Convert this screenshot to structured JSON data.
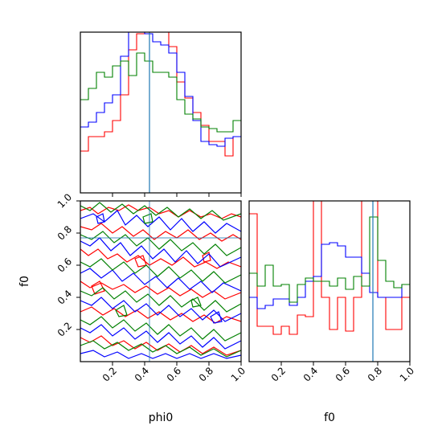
{
  "chart_data": [
    {
      "type": "line",
      "panel": "histogram",
      "parameter": "phi0",
      "x_edges": [
        0.0,
        0.05,
        0.1,
        0.15,
        0.2,
        0.25,
        0.3,
        0.35,
        0.4,
        0.45,
        0.5,
        0.55,
        0.6,
        0.65,
        0.7,
        0.75,
        0.8,
        0.85,
        0.9,
        0.95,
        1.0
      ],
      "xlim": [
        0.0,
        1.0
      ],
      "ticks": [],
      "truth_value": 0.43,
      "truth_color": "#1f77b4",
      "series": [
        {
          "color": "#ff0000",
          "values": [
            0.26,
            0.35,
            0.35,
            0.38,
            0.45,
            0.61,
            0.89,
            0.99,
            1.02,
            1.06,
            1.0,
            0.91,
            0.69,
            0.59,
            0.5,
            0.42,
            0.32,
            0.32,
            0.23,
            0.35
          ]
        },
        {
          "color": "#0000ff",
          "values": [
            0.41,
            0.44,
            0.5,
            0.56,
            0.61,
            0.85,
            1.0,
            1.04,
            0.99,
            0.94,
            0.92,
            0.87,
            0.75,
            0.6,
            0.45,
            0.32,
            0.3,
            0.29,
            0.34,
            0.35
          ]
        },
        {
          "color": "#008000",
          "values": [
            0.58,
            0.65,
            0.75,
            0.72,
            0.79,
            0.82,
            0.73,
            0.87,
            0.82,
            0.75,
            0.75,
            0.72,
            0.58,
            0.49,
            0.46,
            0.41,
            0.4,
            0.38,
            0.38,
            0.45
          ]
        }
      ]
    },
    {
      "type": "contour",
      "panel": "2d",
      "x_parameter": "phi0",
      "y_parameter": "f0",
      "xlim": [
        0.0,
        1.0
      ],
      "ylim": [
        0.0,
        1.0
      ],
      "x_ticks": [
        "0.2",
        "0.4",
        "0.6",
        "0.8",
        "1.0"
      ],
      "y_ticks": [
        "0.2",
        "0.4",
        "0.6",
        "0.8",
        "1.0"
      ],
      "xlabel": "phi0",
      "ylabel": "f0",
      "series_colors": [
        "#ff0000",
        "#0000ff",
        "#008000"
      ]
    },
    {
      "type": "line",
      "panel": "histogram",
      "parameter": "f0",
      "x_edges": [
        0.0,
        0.05,
        0.1,
        0.15,
        0.2,
        0.25,
        0.3,
        0.35,
        0.4,
        0.45,
        0.5,
        0.55,
        0.6,
        0.65,
        0.7,
        0.75,
        0.8,
        0.85,
        0.9,
        0.95,
        1.0
      ],
      "xlim": [
        0.0,
        1.0
      ],
      "x_ticks": [
        "0.2",
        "0.4",
        "0.6",
        "0.8",
        "1.0"
      ],
      "xlabel": "f0",
      "truth_value": 0.77,
      "truth_color": "#1f77b4",
      "series": [
        {
          "color": "#ff0000",
          "values": [
            0.92,
            0.22,
            0.22,
            0.17,
            0.22,
            0.17,
            0.29,
            0.28,
            1.05,
            0.4,
            0.2,
            0.4,
            0.19,
            0.4,
            1.05,
            1.05,
            0.4,
            0.2,
            0.2,
            0.4
          ]
        },
        {
          "color": "#0000ff",
          "values": [
            0.4,
            0.33,
            0.35,
            0.39,
            0.39,
            0.35,
            0.4,
            0.5,
            0.53,
            0.73,
            0.74,
            0.72,
            0.65,
            0.65,
            0.55,
            0.43,
            0.4,
            0.4,
            0.4,
            0.48
          ]
        },
        {
          "color": "#008000",
          "values": [
            0.55,
            0.47,
            0.6,
            0.47,
            0.48,
            0.37,
            0.48,
            0.52,
            0.5,
            0.5,
            0.47,
            0.52,
            0.45,
            0.53,
            0.47,
            0.9,
            0.63,
            0.5,
            0.46,
            0.48
          ]
        }
      ]
    }
  ]
}
